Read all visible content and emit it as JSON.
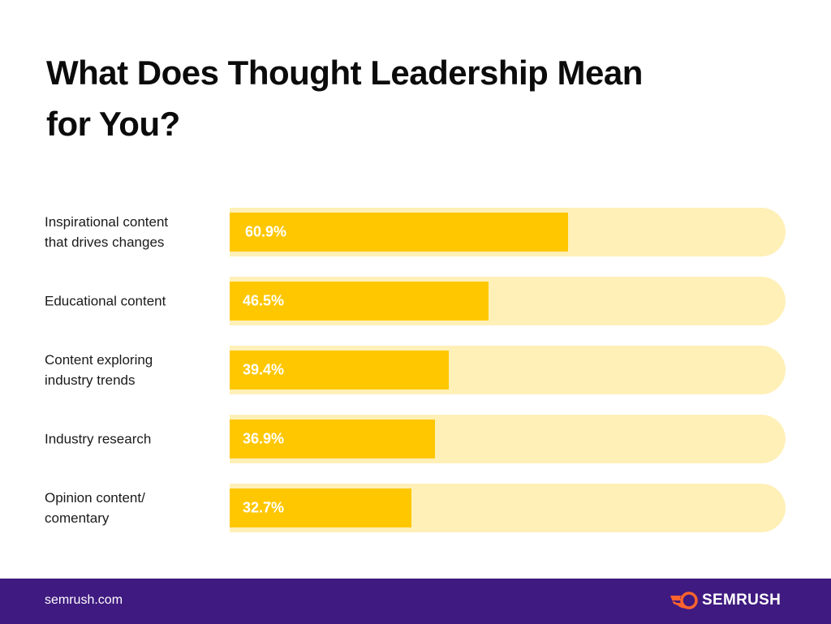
{
  "chart_data": {
    "type": "bar",
    "orientation": "horizontal",
    "title": "What Does Thought Leadership Mean for You?",
    "categories": [
      "Inspirational content that drives changes",
      "Educational content",
      "Content exploring industry trends",
      "Industry research",
      "Opinion content/ comentary"
    ],
    "label_lines": [
      [
        "Inspirational content",
        "that drives changes"
      ],
      [
        "Educational content"
      ],
      [
        "Content exploring",
        "industry trends"
      ],
      [
        "Industry research"
      ],
      [
        "Opinion content/",
        "comentary"
      ]
    ],
    "values": [
      60.9,
      46.5,
      39.4,
      36.9,
      32.7
    ],
    "data_labels": [
      "60.9%",
      "46.5%",
      "39.4%",
      "36.9%",
      "32.7%"
    ],
    "xlim": [
      0,
      100
    ],
    "unit": "%",
    "grid": false,
    "colors": {
      "bar": "#ffc700",
      "track": "#fff0b8"
    }
  },
  "footer": {
    "site": "semrush.com",
    "brand": "SEMRUSH",
    "background": "#3f1a80",
    "logo_color": "#ff642d"
  }
}
